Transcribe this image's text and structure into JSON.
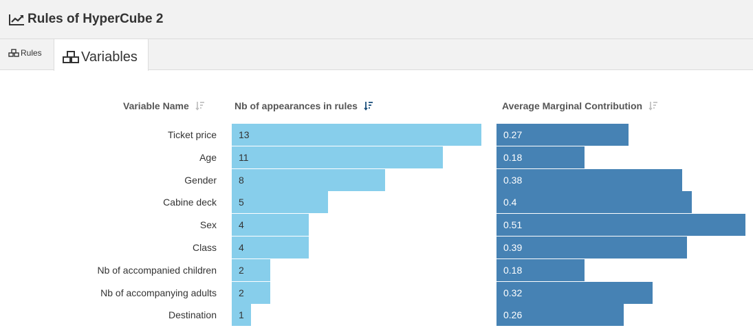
{
  "header": {
    "title": "Rules of HyperCube 2",
    "icon": "line-chart-icon"
  },
  "tabs": [
    {
      "label": "Rules",
      "icon": "cubes-icon",
      "active": false
    },
    {
      "label": "Variables",
      "icon": "cubes-icon",
      "active": true
    }
  ],
  "columns": {
    "name": "Variable Name",
    "appearances": "Nb of appearances in rules",
    "contribution": "Average Marginal Contribution"
  },
  "colors": {
    "light_bar": "#87ceeb",
    "dark_bar": "#4682b4",
    "sort_active": "#1a4e7a",
    "sort_inactive": "#bbbbbb"
  },
  "rows": [
    {
      "name": "Ticket price",
      "appearances": "13",
      "contribution": "0.27"
    },
    {
      "name": "Age",
      "appearances": "11",
      "contribution": "0.18"
    },
    {
      "name": "Gender",
      "appearances": "8",
      "contribution": "0.38"
    },
    {
      "name": "Cabine deck",
      "appearances": "5",
      "contribution": "0.4"
    },
    {
      "name": "Sex",
      "appearances": "4",
      "contribution": "0.51"
    },
    {
      "name": "Class",
      "appearances": "4",
      "contribution": "0.39"
    },
    {
      "name": "Nb of accompanied children",
      "appearances": "2",
      "contribution": "0.18"
    },
    {
      "name": "Nb of accompanying adults",
      "appearances": "2",
      "contribution": "0.32"
    },
    {
      "name": "Destination",
      "appearances": "1",
      "contribution": "0.26"
    }
  ]
}
